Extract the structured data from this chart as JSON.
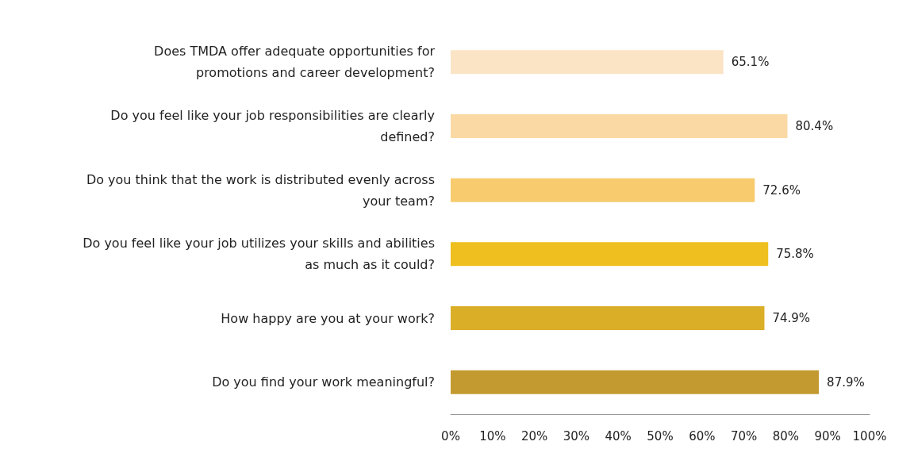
{
  "chart_data": {
    "type": "bar",
    "orientation": "horizontal",
    "categories": [
      "Does TMDA offer adequate opportunities for\npromotions and career development?",
      "Do you feel like your job responsibilities are clearly\ndefined?",
      "Do you think that the work is distributed evenly across\nyour team?",
      "Do you feel like your job utilizes your skills and abilities\nas much as it could?",
      "How happy are you at your work?",
      "Do you find your work meaningful?"
    ],
    "values": [
      65.1,
      80.4,
      72.6,
      75.8,
      74.9,
      87.9
    ],
    "colors": [
      "#fbe4c5",
      "#fad9a5",
      "#f7cb6e",
      "#eebf1e",
      "#dbae27",
      "#c39a2f"
    ],
    "value_labels": [
      "65.1%",
      "80.4%",
      "72.6%",
      "75.8%",
      "74.9%",
      "87.9%"
    ],
    "xlim": [
      0,
      100
    ],
    "xticks": [
      {
        "value": 0,
        "label": "0%"
      },
      {
        "value": 10,
        "label": "10%"
      },
      {
        "value": 20,
        "label": "20%"
      },
      {
        "value": 30,
        "label": "30%"
      },
      {
        "value": 40,
        "label": "40%"
      },
      {
        "value": 50,
        "label": "50%"
      },
      {
        "value": 60,
        "label": "60%"
      },
      {
        "value": 70,
        "label": "70%"
      },
      {
        "value": 80,
        "label": "80%"
      },
      {
        "value": 90,
        "label": "90%"
      },
      {
        "value": 100,
        "label": "100%"
      }
    ],
    "grid": false
  }
}
